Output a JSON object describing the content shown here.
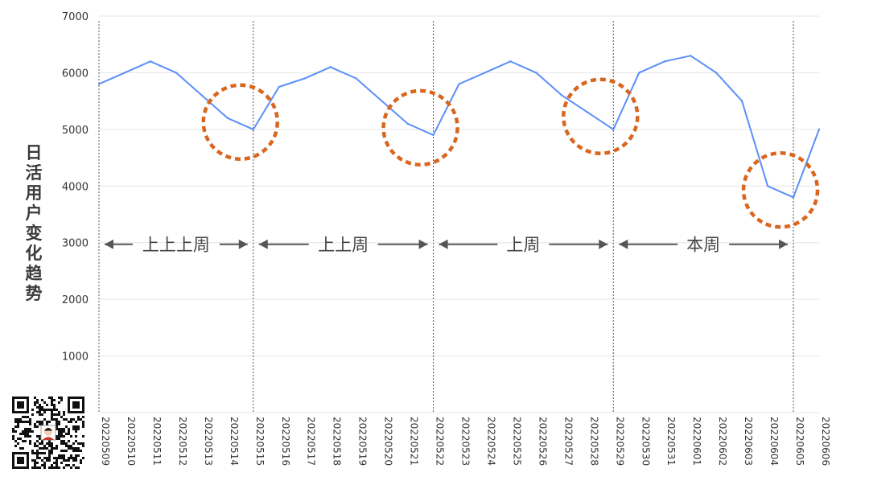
{
  "chart_data": {
    "type": "line",
    "title": "",
    "xlabel": "",
    "ylabel": "日活用户变化趋势",
    "ylim": [
      0,
      7000
    ],
    "yticks": [
      1000,
      2000,
      3000,
      4000,
      5000,
      6000,
      7000
    ],
    "grid": true,
    "categories": [
      "20220509",
      "20220510",
      "20220511",
      "20220512",
      "20220513",
      "20220514",
      "20220515",
      "20220516",
      "20220517",
      "20220518",
      "20220519",
      "20220520",
      "20220521",
      "20220522",
      "20220523",
      "20220524",
      "20220525",
      "20220526",
      "20220527",
      "20220528",
      "20220529",
      "20220530",
      "20220531",
      "20220601",
      "20220602",
      "20220603",
      "20220604",
      "20220605",
      "20220606"
    ],
    "series": [
      {
        "values": [
          5800,
          6000,
          6200,
          6000,
          5600,
          5200,
          5000,
          5750,
          5900,
          6100,
          5900,
          5500,
          5100,
          4900,
          5800,
          6000,
          6200,
          6000,
          5600,
          5300,
          5000,
          6000,
          6200,
          6300,
          6000,
          5500,
          4000,
          3800,
          5000
        ]
      }
    ],
    "line_color": "#5b8ff9",
    "highlight_color": "#d9661f",
    "week_dividers": [
      "20220509",
      "20220515",
      "20220522",
      "20220529",
      "20220605"
    ],
    "week_annotations": [
      {
        "label": "上上上周",
        "from": "20220509",
        "to": "20220515"
      },
      {
        "label": "上上周",
        "from": "20220515",
        "to": "20220522"
      },
      {
        "label": "上周",
        "from": "20220522",
        "to": "20220529"
      },
      {
        "label": "本周",
        "from": "20220529",
        "to": "20220605"
      }
    ],
    "highlight_circles": [
      "20220515",
      "20220522",
      "20220529",
      "20220605"
    ]
  }
}
